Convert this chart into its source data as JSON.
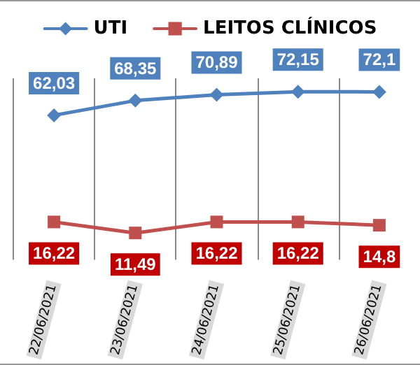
{
  "chart_data": {
    "type": "line",
    "categories": [
      "22/06/2021",
      "23/06/2021",
      "24/06/2021",
      "25/06/2021",
      "26/06/2021"
    ],
    "series": [
      {
        "name": "UTI",
        "color": "#4f81bd",
        "marker": "diamond",
        "values": [
          62.03,
          68.35,
          70.89,
          72.15,
          72.1
        ],
        "value_labels": [
          "62,03",
          "68,35",
          "70,89",
          "72,15",
          "72,1"
        ]
      },
      {
        "name": "LEITOS CLÍNICOS",
        "color": "#c0504d",
        "marker": "square",
        "values": [
          16.22,
          11.49,
          16.22,
          16.22,
          14.8
        ],
        "value_labels": [
          "16,22",
          "11,49",
          "16,22",
          "16,22",
          "14,8"
        ]
      }
    ],
    "grid": "x",
    "legend": "top"
  }
}
